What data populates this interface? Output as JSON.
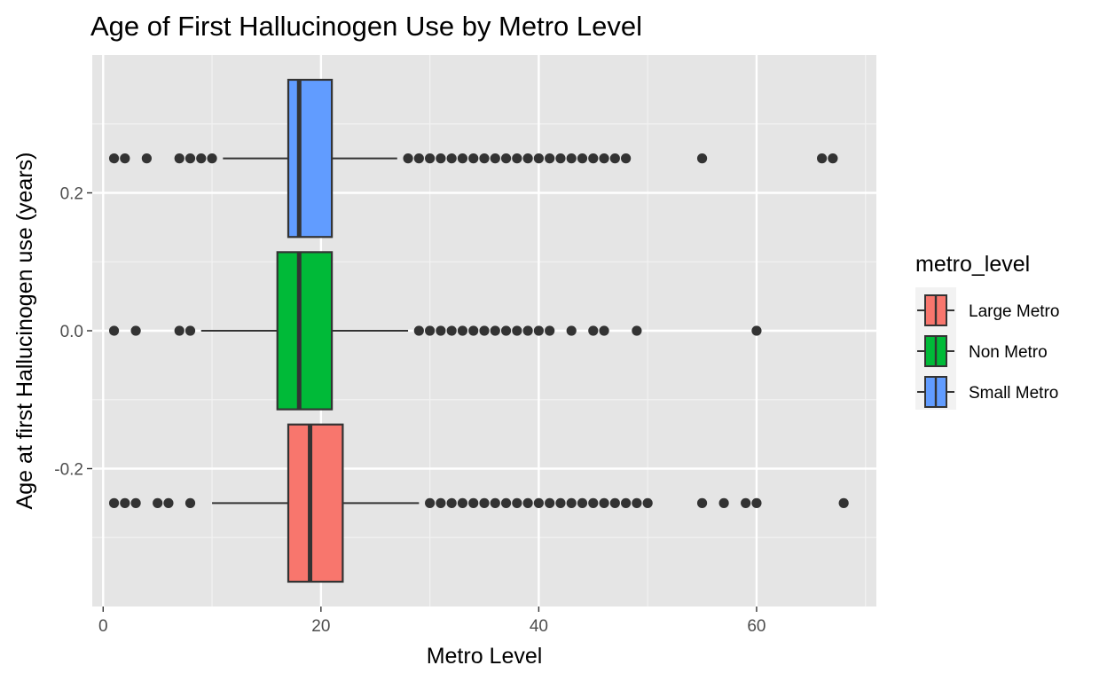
{
  "chart_data": {
    "type": "boxplot",
    "title": "Age of First Hallucinogen Use by Metro Level",
    "xlabel": "Metro Level",
    "ylabel": "Age at first Hallucinogen use (years)",
    "xlim": [
      -1.0,
      71.0
    ],
    "ylim": [
      -0.4,
      0.4
    ],
    "x_ticks": [
      0,
      20,
      40,
      60
    ],
    "y_ticks": [
      -0.2,
      0.0,
      0.2
    ],
    "x_tick_labels": [
      "0",
      "20",
      "40",
      "60"
    ],
    "y_tick_labels": [
      "-0.2",
      "0.0",
      "0.2"
    ],
    "grid": true,
    "legend": {
      "title": "metro_level",
      "placement": "right",
      "entries": [
        {
          "label": "Large Metro",
          "color": "#F8766D"
        },
        {
          "label": "Non Metro",
          "color": "#00BA38"
        },
        {
          "label": "Small Metro",
          "color": "#619CFF"
        }
      ]
    },
    "series": [
      {
        "name": "Small Metro",
        "color": "#619CFF",
        "y_center": 0.25,
        "y_top": 0.364,
        "y_bottom": 0.136,
        "q1": 17,
        "median": 18,
        "q3": 21,
        "whisker_low": 11,
        "whisker_high": 27,
        "outliers": [
          1,
          2,
          4,
          7,
          8,
          9,
          10,
          28,
          29,
          30,
          31,
          32,
          33,
          34,
          35,
          36,
          37,
          38,
          39,
          40,
          41,
          42,
          43,
          44,
          45,
          46,
          47,
          48,
          55,
          66,
          67
        ]
      },
      {
        "name": "Non Metro",
        "color": "#00BA38",
        "y_center": 0.0,
        "y_top": 0.114,
        "y_bottom": -0.114,
        "q1": 16,
        "median": 18,
        "q3": 21,
        "whisker_low": 9,
        "whisker_high": 28,
        "outliers": [
          1,
          3,
          7,
          8,
          29,
          30,
          31,
          32,
          33,
          34,
          35,
          36,
          37,
          38,
          39,
          40,
          41,
          43,
          45,
          46,
          49,
          60
        ]
      },
      {
        "name": "Large Metro",
        "color": "#F8766D",
        "y_center": -0.25,
        "y_top": -0.136,
        "y_bottom": -0.364,
        "q1": 17,
        "median": 19,
        "q3": 22,
        "whisker_low": 10,
        "whisker_high": 29,
        "outliers": [
          1,
          2,
          3,
          5,
          6,
          8,
          30,
          31,
          32,
          33,
          34,
          35,
          36,
          37,
          38,
          39,
          40,
          41,
          42,
          43,
          44,
          45,
          46,
          47,
          48,
          49,
          50,
          55,
          57,
          59,
          60,
          68
        ]
      }
    ]
  }
}
